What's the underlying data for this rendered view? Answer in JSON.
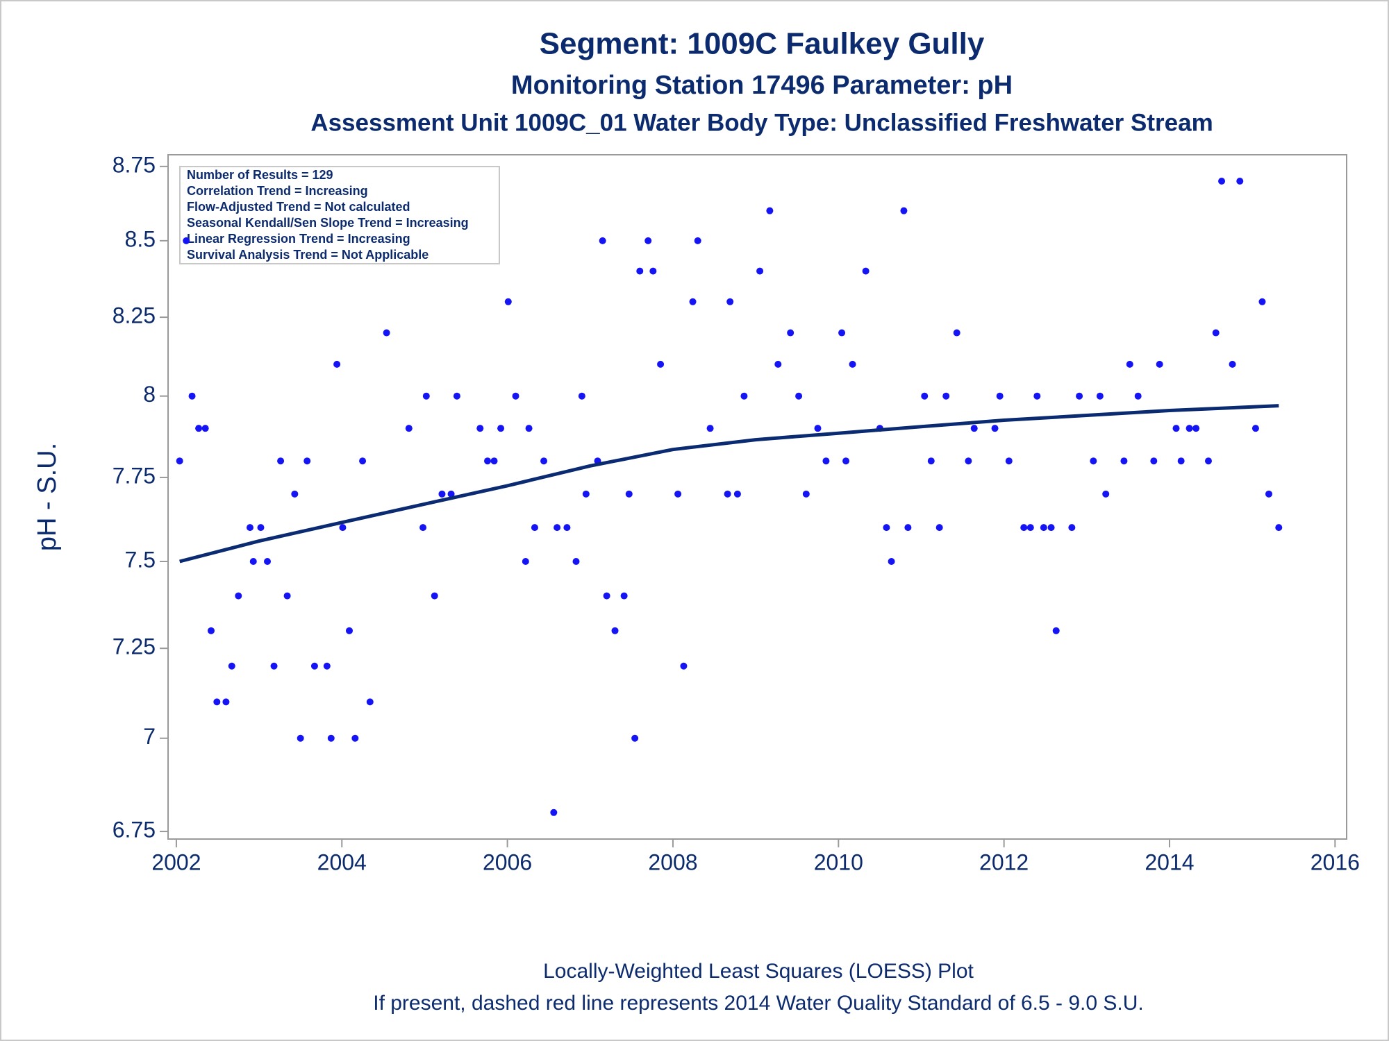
{
  "chart_data": {
    "type": "scatter",
    "title": "Segment: 1009C  Faulkey Gully",
    "subtitles": [
      "Monitoring Station 17496 Parameter: pH",
      "Assessment Unit 1009C_01   Water Body Type: Unclassified Freshwater Stream"
    ],
    "ylabel": "pH - S.U.",
    "annotation_lines": [
      "Number of Results = 129",
      "Correlation Trend = Increasing",
      "Flow-Adjusted Trend = Not calculated",
      "Seasonal Kendall/Sen Slope Trend = Increasing",
      "Linear Regression Trend = Increasing",
      "Survival Analysis Trend = Not Applicable"
    ],
    "footnotes": [
      "Locally-Weighted Least Squares (LOESS) Plot",
      "If present, dashed red line represents 2014 Water Quality Standard of 6.5 - 9.0 S.U."
    ],
    "xlim": [
      2001.9,
      2016.14
    ],
    "xticks": [
      2002,
      2004,
      2006,
      2008,
      2010,
      2012,
      2014,
      2016
    ],
    "ylim": [
      6.73,
      8.79
    ],
    "yticks": [
      6.75,
      7,
      7.25,
      7.5,
      7.75,
      8,
      8.25,
      8.5,
      8.75
    ],
    "ylog": true,
    "grid": false,
    "series": [
      {
        "type": "scatter",
        "color": "#1414f5",
        "x": [
          2002.04,
          2002.12,
          2002.19,
          2002.27,
          2002.35,
          2002.42,
          2002.49,
          2002.6,
          2002.67,
          2002.75,
          2002.89,
          2002.93,
          2003.02,
          2003.1,
          2003.18,
          2003.26,
          2003.34,
          2003.43,
          2003.5,
          2003.58,
          2003.67,
          2003.82,
          2003.87,
          2003.94,
          2004.01,
          2004.09,
          2004.16,
          2004.25,
          2004.34,
          2004.54,
          2004.81,
          2004.98,
          2005.02,
          2005.12,
          2005.21,
          2005.32,
          2005.39,
          2005.67,
          2005.76,
          2005.84,
          2005.92,
          2006.01,
          2006.1,
          2006.22,
          2006.26,
          2006.33,
          2006.44,
          2006.56,
          2006.6,
          2006.72,
          2006.83,
          2006.9,
          2006.95,
          2007.09,
          2007.15,
          2007.2,
          2007.3,
          2007.41,
          2007.47,
          2007.54,
          2007.6,
          2007.7,
          2007.76,
          2007.85,
          2008.06,
          2008.13,
          2008.24,
          2008.3,
          2008.45,
          2008.66,
          2008.69,
          2008.78,
          2008.86,
          2009.05,
          2009.17,
          2009.27,
          2009.42,
          2009.52,
          2009.61,
          2009.75,
          2009.85,
          2010.04,
          2010.09,
          2010.17,
          2010.33,
          2010.5,
          2010.58,
          2010.64,
          2010.79,
          2010.84,
          2011.04,
          2011.12,
          2011.22,
          2011.3,
          2011.43,
          2011.57,
          2011.64,
          2011.89,
          2011.95,
          2012.06,
          2012.24,
          2012.32,
          2012.4,
          2012.48,
          2012.57,
          2012.63,
          2012.82,
          2012.91,
          2013.08,
          2013.16,
          2013.23,
          2013.45,
          2013.52,
          2013.62,
          2013.81,
          2013.88,
          2014.08,
          2014.14,
          2014.24,
          2014.32,
          2014.47,
          2014.56,
          2014.63,
          2014.76,
          2014.85,
          2015.04,
          2015.12,
          2015.2,
          2015.32
        ],
        "values": [
          7.8,
          8.5,
          8.0,
          7.9,
          7.9,
          7.3,
          7.1,
          7.1,
          7.2,
          7.4,
          7.6,
          7.5,
          7.6,
          7.5,
          7.2,
          7.8,
          7.4,
          7.7,
          7.0,
          7.8,
          7.2,
          7.2,
          7.0,
          8.1,
          7.6,
          7.3,
          7.0,
          7.8,
          7.1,
          8.2,
          7.9,
          7.6,
          8.0,
          7.4,
          7.7,
          7.7,
          8.0,
          7.9,
          7.8,
          7.8,
          7.9,
          8.3,
          8.0,
          7.5,
          7.9,
          7.6,
          7.8,
          6.8,
          7.6,
          7.6,
          7.5,
          8.0,
          7.7,
          7.8,
          8.5,
          7.4,
          7.3,
          7.4,
          7.7,
          7.0,
          8.4,
          8.5,
          8.4,
          8.1,
          7.7,
          7.2,
          8.3,
          8.5,
          7.9,
          7.7,
          8.3,
          7.7,
          8.0,
          8.4,
          8.6,
          8.1,
          8.2,
          8.0,
          7.7,
          7.9,
          7.8,
          8.2,
          7.8,
          8.1,
          8.4,
          7.9,
          7.6,
          7.5,
          8.6,
          7.6,
          8.0,
          7.8,
          7.6,
          8.0,
          8.2,
          7.8,
          7.9,
          7.9,
          8.0,
          7.8,
          7.6,
          7.6,
          8.0,
          7.6,
          7.6,
          7.3,
          7.6,
          8.0,
          7.8,
          8.0,
          7.7,
          7.8,
          8.1,
          8.0,
          7.8,
          8.1,
          7.9,
          7.8,
          7.9,
          7.9,
          7.8,
          8.2,
          8.7,
          8.1,
          8.7,
          7.9,
          8.3,
          7.7,
          7.6
        ]
      },
      {
        "type": "line",
        "color": "#0a2a72",
        "x": [
          2002.04,
          2003,
          2004,
          2005,
          2006,
          2007,
          2008,
          2009,
          2010,
          2011,
          2012,
          2013,
          2014,
          2015.32
        ],
        "values": [
          7.5,
          7.56,
          7.615,
          7.67,
          7.725,
          7.785,
          7.835,
          7.865,
          7.885,
          7.905,
          7.925,
          7.94,
          7.955,
          7.97
        ]
      }
    ]
  }
}
